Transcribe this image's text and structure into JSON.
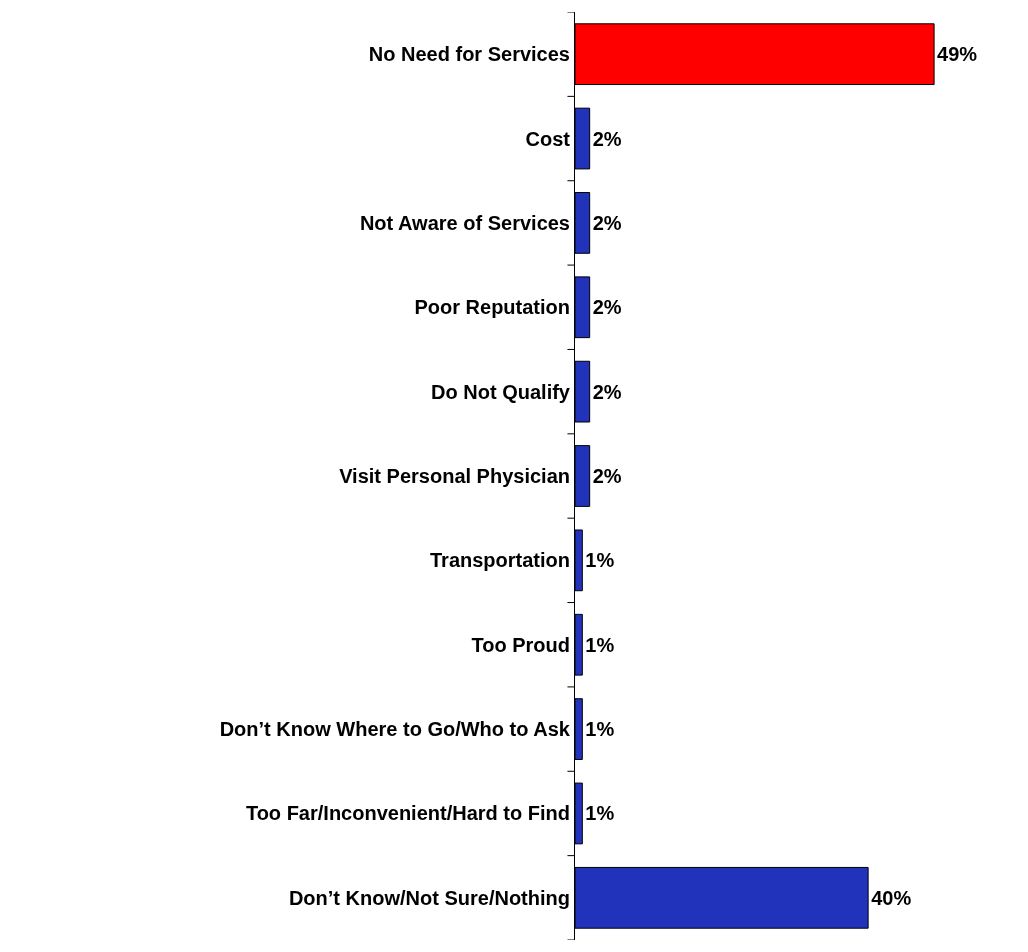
{
  "chart_data": {
    "type": "bar",
    "orientation": "horizontal",
    "categories": [
      "No Need for Services",
      "Cost",
      "Not Aware of Services",
      "Poor Reputation",
      "Do Not Qualify",
      "Visit Personal Physician",
      "Transportation",
      "Too Proud",
      "Don’t Know Where to Go/Who to Ask",
      "Too Far/Inconvenient/Hard to Find",
      "Don’t Know/Not Sure/Nothing"
    ],
    "values": [
      49,
      2,
      2,
      2,
      2,
      2,
      1,
      1,
      1,
      1,
      40
    ],
    "value_labels": [
      "49%",
      "2%",
      "2%",
      "2%",
      "2%",
      "2%",
      "1%",
      "1%",
      "1%",
      "1%",
      "40%"
    ],
    "colors": [
      "#ff0000",
      "#2233bb",
      "#2233bb",
      "#2233bb",
      "#2233bb",
      "#2233bb",
      "#2233bb",
      "#2233bb",
      "#2233bb",
      "#2233bb",
      "#2233bb"
    ]
  }
}
